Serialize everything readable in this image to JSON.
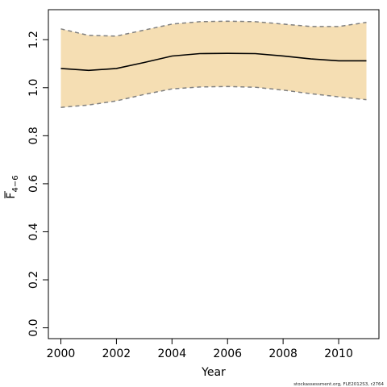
{
  "chart_data": {
    "type": "area",
    "xlabel": "Year",
    "ylabel": {
      "base": "F",
      "subscript": "4−6"
    },
    "xlim": [
      1999.55,
      2011.45
    ],
    "ylim": [
      -0.045,
      1.325
    ],
    "x_ticks": [
      2000,
      2002,
      2004,
      2006,
      2008,
      2010
    ],
    "x_tick_labels": [
      "2000",
      "2002",
      "2004",
      "2006",
      "2008",
      "2010"
    ],
    "y_ticks": [
      0.0,
      0.2,
      0.4,
      0.6,
      0.8,
      1.0,
      1.2
    ],
    "y_tick_labels": [
      "0.0",
      "0.2",
      "0.4",
      "0.6",
      "0.8",
      "1.0",
      "1.2"
    ],
    "x": [
      2000,
      2001,
      2002,
      2003,
      2004,
      2005,
      2006,
      2007,
      2008,
      2009,
      2010,
      2011
    ],
    "series": [
      {
        "values": [
          1.08,
          1.072,
          1.08,
          1.105,
          1.132,
          1.142,
          1.143,
          1.142,
          1.132,
          1.12,
          1.112,
          1.112
        ],
        "style": "solid",
        "color": "#000000"
      },
      {
        "values": [
          1.245,
          1.218,
          1.215,
          1.24,
          1.265,
          1.275,
          1.277,
          1.275,
          1.265,
          1.255,
          1.255,
          1.272
        ],
        "style": "dashed",
        "color": "#808080"
      },
      {
        "values": [
          0.918,
          0.928,
          0.945,
          0.972,
          0.995,
          1.003,
          1.005,
          1.002,
          0.99,
          0.975,
          0.962,
          0.95
        ],
        "style": "dashed",
        "color": "#808080"
      }
    ],
    "band_color": "#f5deb3",
    "grid": false,
    "footer": "stockassessment.org, FLE2012S3, r2764"
  }
}
